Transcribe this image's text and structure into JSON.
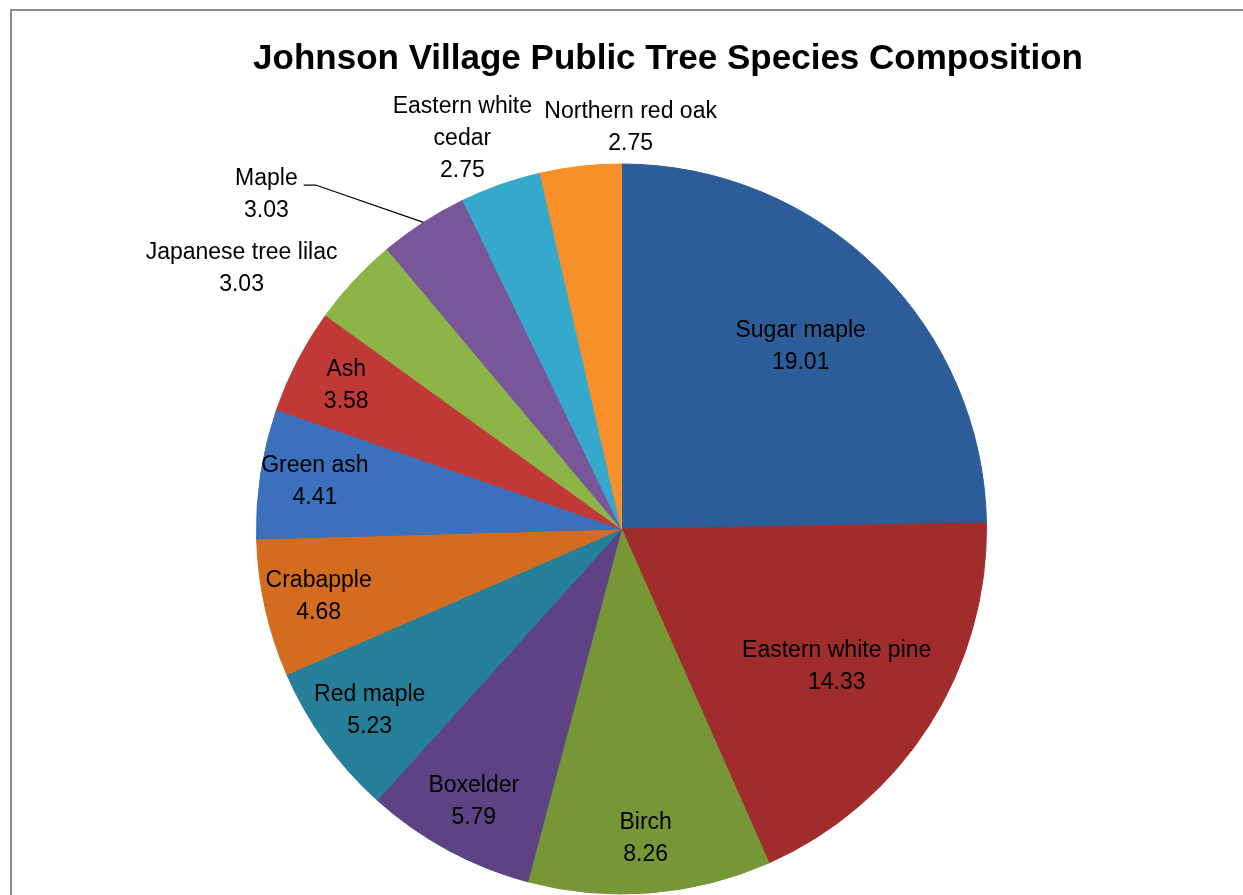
{
  "chart_data": {
    "type": "pie",
    "title": "Johnson Village Public Tree Species Composition",
    "categories": [
      "Sugar maple",
      "Eastern white pine",
      "Birch",
      "Boxelder",
      "Red maple",
      "Crabapple",
      "Green ash",
      "Ash",
      "Japanese tree lilac",
      "Maple",
      "Eastern white cedar",
      "Northern red oak"
    ],
    "values": [
      19.01,
      14.33,
      8.26,
      5.79,
      5.23,
      4.68,
      4.41,
      3.58,
      3.03,
      3.03,
      2.75,
      2.75
    ],
    "colors": [
      "#2c5d98",
      "#a02d2c",
      "#779737",
      "#5d4383",
      "#267f98",
      "#d46c1f",
      "#3a70bc",
      "#c03937",
      "#8db446",
      "#775699",
      "#34a9cc",
      "#f79028"
    ],
    "data_labels": true
  }
}
